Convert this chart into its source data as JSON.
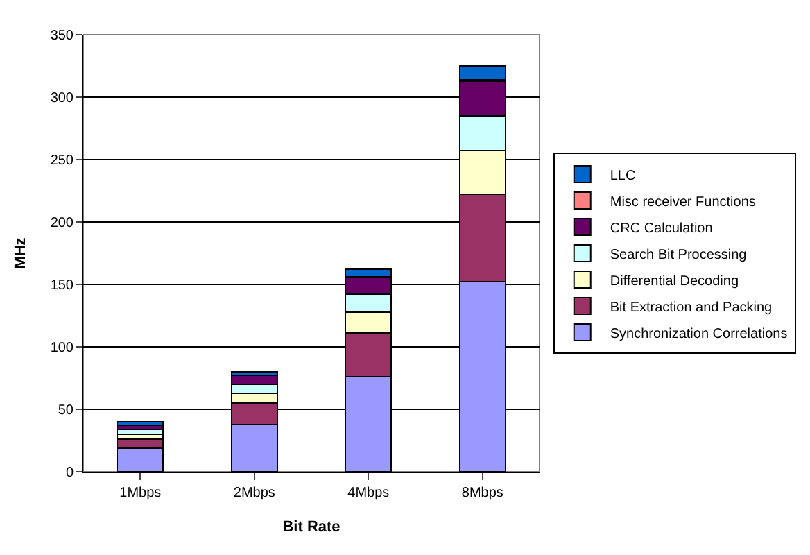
{
  "chart_data": {
    "type": "bar",
    "stacked": true,
    "xlabel": "Bit Rate",
    "ylabel": "MHz",
    "categories": [
      "1Mbps",
      "2Mbps",
      "4Mbps",
      "8Mbps"
    ],
    "series": [
      {
        "name": "Synchronization Correlations",
        "color": "#9999ff",
        "values": [
          19,
          38,
          76,
          152
        ]
      },
      {
        "name": "Bit Extraction and Packing",
        "color": "#993366",
        "values": [
          7,
          17,
          35,
          70
        ]
      },
      {
        "name": "Differential Decoding",
        "color": "#ffffcc",
        "values": [
          4,
          8,
          17,
          35
        ]
      },
      {
        "name": "Search Bit Processing",
        "color": "#ccffff",
        "values": [
          4,
          7,
          14,
          28
        ]
      },
      {
        "name": "CRC Calculation",
        "color": "#660066",
        "values": [
          3,
          7,
          14,
          28
        ]
      },
      {
        "name": "Misc receiver Functions",
        "color": "#ff8080",
        "values": [
          0,
          0,
          0,
          1
        ]
      },
      {
        "name": "LLC",
        "color": "#0066cc",
        "values": [
          3,
          3,
          6,
          11
        ]
      }
    ],
    "ylim": [
      0,
      350
    ],
    "yticks": [
      0,
      50,
      100,
      150,
      200,
      250,
      300,
      350
    ],
    "grid": "y",
    "legend": "right"
  }
}
